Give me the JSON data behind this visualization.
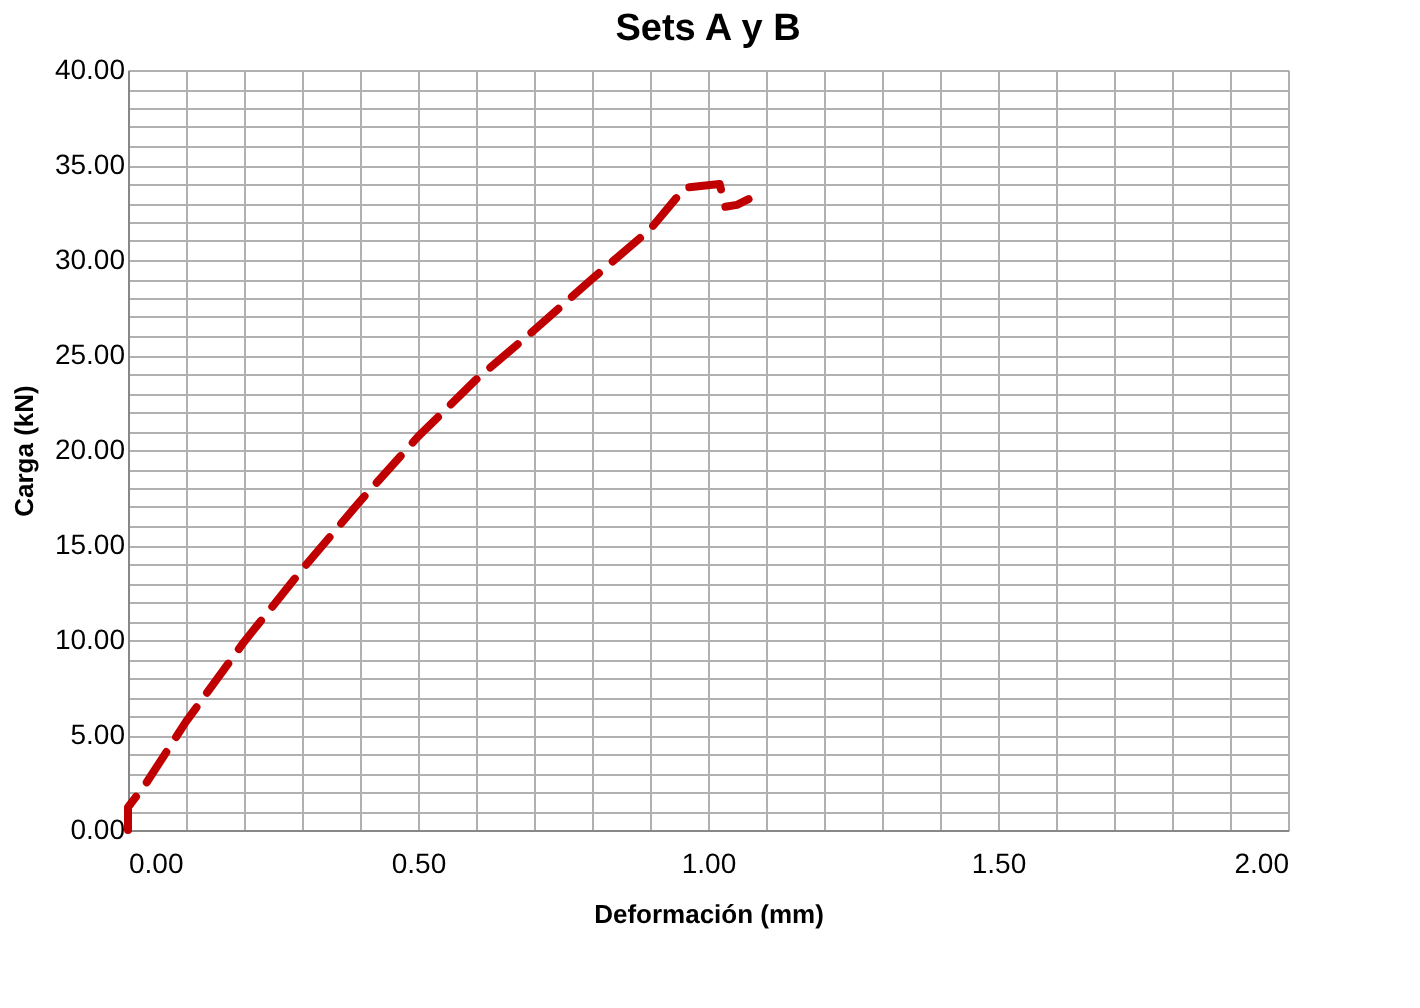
{
  "chart_data": {
    "type": "line",
    "title": "Sets A y B",
    "xlabel": "Deformación (mm)",
    "ylabel": "Carga (kN)",
    "series": [
      {
        "color": "#c00000",
        "x": [
          0,
          0.0,
          0.01,
          0.03,
          0.1,
          0.2,
          0.3,
          0.4,
          0.5,
          0.6,
          0.7,
          0.8,
          0.9,
          0.96,
          1.02,
          1.03,
          1.05,
          1.07
        ],
        "values": [
          0,
          1.2,
          1.6,
          2.4,
          5.7,
          9.9,
          13.7,
          17.3,
          20.7,
          23.7,
          26.3,
          29.0,
          31.6,
          33.8,
          34.0,
          32.8,
          32.9,
          33.2
        ]
      }
    ],
    "xlim": [
      0,
      2
    ],
    "xticks": [
      {
        "value": 0,
        "label": "0.00"
      },
      {
        "value": 0.5,
        "label": "0.50"
      },
      {
        "value": 1,
        "label": "1.00"
      },
      {
        "value": 1.5,
        "label": "1.50"
      },
      {
        "value": 2,
        "label": "2.00"
      }
    ],
    "ylim": [
      0,
      40
    ],
    "yticks": [
      {
        "value": 0,
        "label": "0.00"
      },
      {
        "value": 5,
        "label": "5.00"
      },
      {
        "value": 10,
        "label": "10.00"
      },
      {
        "value": 15,
        "label": "15.00"
      },
      {
        "value": 20,
        "label": "20.00"
      },
      {
        "value": 25,
        "label": "25.00"
      },
      {
        "value": 30,
        "label": "30.00"
      },
      {
        "value": 35,
        "label": "35.00"
      },
      {
        "value": 40,
        "label": "40.00"
      }
    ],
    "grid": true,
    "legend": false,
    "line_style": "dashed",
    "marker": "none"
  }
}
